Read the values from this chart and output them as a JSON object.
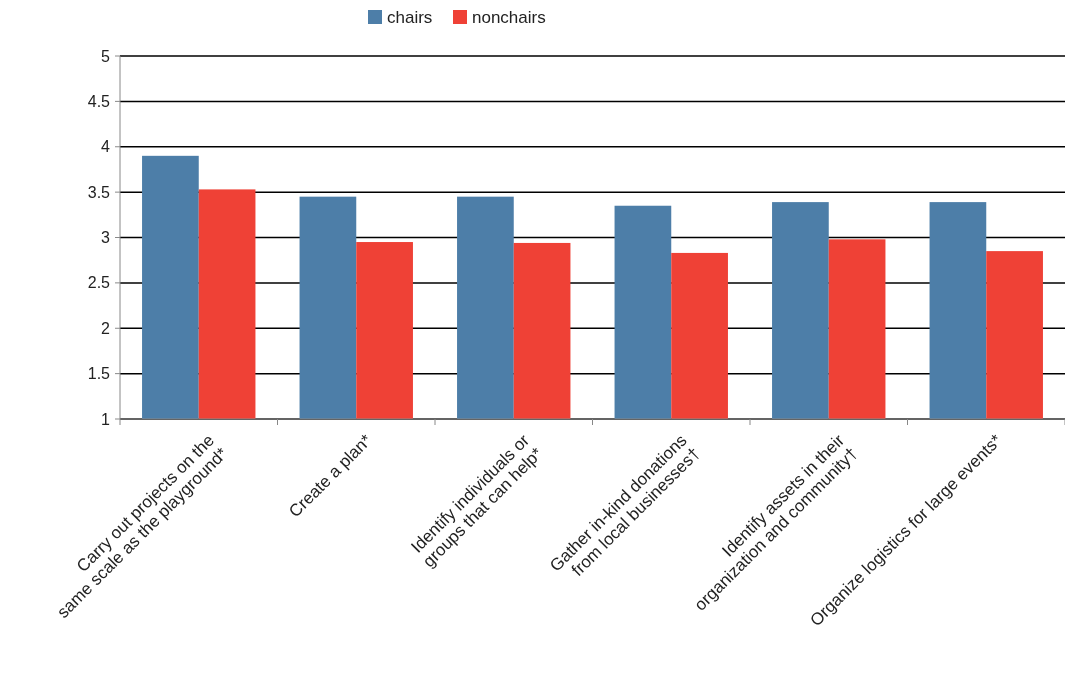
{
  "chart_data": {
    "type": "bar",
    "categories": [
      "Carry out projects on the\nsame scale as the playground*",
      "Create a plan*",
      "Identify individuals or\ngroups that can help*",
      "Gather in-kind donations\nfrom local businesses†",
      "Identify assets in their\norganization and community†",
      "Organize logistics for large events*"
    ],
    "series": [
      {
        "name": "chairs",
        "color": "#4d7ea8",
        "values": [
          3.9,
          3.45,
          3.45,
          3.35,
          3.39,
          3.39
        ]
      },
      {
        "name": "nonchairs",
        "color": "#ef4136",
        "values": [
          3.53,
          2.95,
          2.94,
          2.83,
          2.98,
          2.85
        ]
      }
    ],
    "ylim": [
      1,
      5
    ],
    "yticks": [
      1,
      1.5,
      2,
      2.5,
      3,
      3.5,
      4,
      4.5,
      5
    ],
    "grid": "y",
    "legend": "top"
  }
}
